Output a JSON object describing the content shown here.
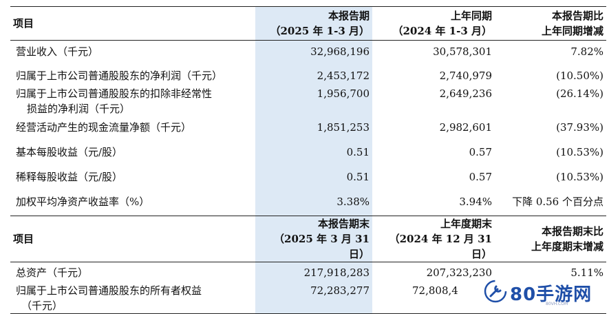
{
  "table1": {
    "header": {
      "item": "项目",
      "col2_line1": "本报告期",
      "col2_line2": "（2025 年 1-3 月）",
      "col3_line1": "上年同期",
      "col3_line2": "（2024 年 1-3 月）",
      "col4_line1": "本报告期比",
      "col4_line2": "上年同期增减"
    },
    "rows": [
      {
        "label": "营业收入（千元）",
        "current": "32,968,196",
        "prior": "30,578,301",
        "change": "7.82%"
      },
      {
        "label": "归属于上市公司普通股股东的净利润（千元）",
        "current": "2,453,172",
        "prior": "2,740,979",
        "change": "(10.50%)"
      },
      {
        "label": "归属于上市公司普通股股东的扣除非经常性",
        "label2": "损益的净利润（千元）",
        "current": "1,956,700",
        "prior": "2,649,236",
        "change": "(26.14%)"
      },
      {
        "label": "经营活动产生的现金流量净额（千元）",
        "current": "1,851,253",
        "prior": "2,982,601",
        "change": "(37.93%)"
      },
      {
        "label": "基本每股收益（元/股）",
        "current": "0.51",
        "prior": "0.57",
        "change": "(10.53%)"
      },
      {
        "label": "稀释每股收益（元/股）",
        "current": "0.51",
        "prior": "0.57",
        "change": "(10.53%)"
      },
      {
        "label": "加权平均净资产收益率（%）",
        "current": "3.38%",
        "prior": "3.94%",
        "change": "下降 0.56 个百分点"
      }
    ]
  },
  "table2": {
    "header": {
      "item": "项目",
      "col2_line1": "本报告期末",
      "col2_line2": "（2025 年 3 月 31 日）",
      "col3_line1": "上年度期末",
      "col3_line2": "（2024 年 12 月 31 日）",
      "col4_line1": "本报告期末比",
      "col4_line2": "上年度期末增减"
    },
    "rows": [
      {
        "label": "总资产（千元）",
        "current": "217,918,283",
        "prior": "207,323,230",
        "change": "5.11%"
      },
      {
        "label": "归属于上市公司普通股股东的所有者权益",
        "label2": "（千元）",
        "current": "72,283,277",
        "prior": "72,808,4",
        "change": ""
      }
    ]
  },
  "watermark": {
    "brand": "80手游网",
    "domain": "80VH.COM",
    "brand_color": "#1f4fa8"
  }
}
